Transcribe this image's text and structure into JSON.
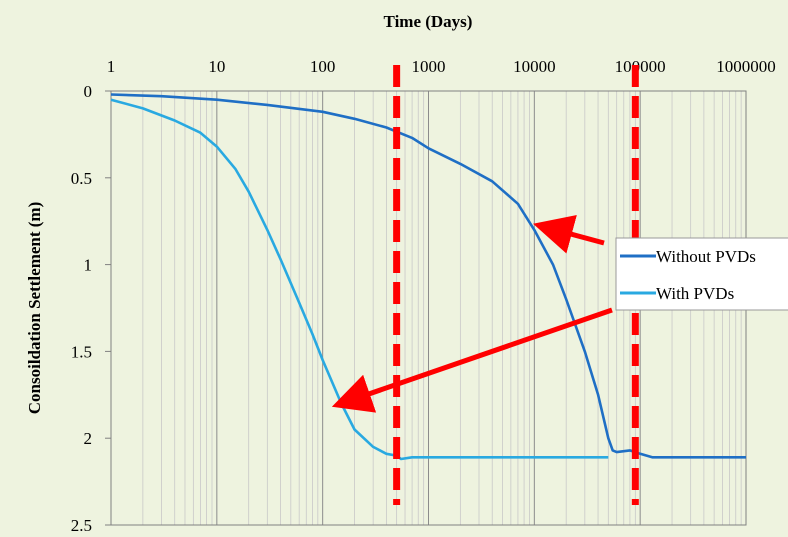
{
  "chart_data": {
    "type": "line",
    "title": "Time (Days)",
    "xlabel": "Time (Days)",
    "ylabel": "Consoildation Settlement (m)",
    "xscale": "log",
    "xlim": [
      1,
      1000000
    ],
    "ylim": [
      2.5,
      0
    ],
    "y_inverted": true,
    "x_axis_position": "top",
    "x_ticks": [
      "1",
      "10",
      "100",
      "1000",
      "10000",
      "100000",
      "1000000"
    ],
    "y_ticks": [
      "0",
      "0.5",
      "1",
      "1.5",
      "2",
      "2.5"
    ],
    "grid": {
      "vertical_minor": true,
      "horizontal": false
    },
    "legend": {
      "placement": "right",
      "entries": [
        "Without PVDs",
        "With PVDs"
      ]
    },
    "series": [
      {
        "name": "Without PVDs",
        "color": "#1f6fc5",
        "points": [
          [
            1,
            0.02
          ],
          [
            3,
            0.03
          ],
          [
            10,
            0.05
          ],
          [
            30,
            0.08
          ],
          [
            100,
            0.12
          ],
          [
            200,
            0.16
          ],
          [
            400,
            0.21
          ],
          [
            700,
            0.27
          ],
          [
            1000,
            0.33
          ],
          [
            2000,
            0.42
          ],
          [
            4000,
            0.52
          ],
          [
            7000,
            0.65
          ],
          [
            10000,
            0.8
          ],
          [
            15000,
            1.0
          ],
          [
            20000,
            1.2
          ],
          [
            30000,
            1.5
          ],
          [
            40000,
            1.75
          ],
          [
            50000,
            2.0
          ],
          [
            55000,
            2.07
          ],
          [
            60000,
            2.08
          ],
          [
            80000,
            2.07
          ],
          [
            100000,
            2.09
          ],
          [
            130000,
            2.11
          ],
          [
            1000000,
            2.11
          ]
        ]
      },
      {
        "name": "With PVDs",
        "color": "#29a9e1",
        "points": [
          [
            1,
            0.05
          ],
          [
            2,
            0.1
          ],
          [
            4,
            0.17
          ],
          [
            7,
            0.24
          ],
          [
            10,
            0.32
          ],
          [
            15,
            0.45
          ],
          [
            20,
            0.58
          ],
          [
            30,
            0.8
          ],
          [
            40,
            0.97
          ],
          [
            60,
            1.22
          ],
          [
            80,
            1.4
          ],
          [
            100,
            1.55
          ],
          [
            150,
            1.8
          ],
          [
            200,
            1.95
          ],
          [
            300,
            2.05
          ],
          [
            400,
            2.09
          ],
          [
            500,
            2.1
          ],
          [
            550,
            2.12
          ],
          [
            700,
            2.11
          ],
          [
            1000,
            2.11
          ],
          [
            50000,
            2.11
          ]
        ]
      }
    ],
    "annotations": [
      {
        "type": "dashed-vertical-line",
        "x": 500,
        "color": "#ff0000"
      },
      {
        "type": "dashed-vertical-line",
        "x": 90000,
        "color": "#ff0000"
      },
      {
        "type": "arrow",
        "from_legend": "Without PVDs",
        "to": [
          12000,
          0.78
        ],
        "color": "#ff0000"
      },
      {
        "type": "arrow",
        "from_legend": "With PVDs",
        "to": [
          150,
          1.8
        ],
        "color": "#ff0000"
      }
    ]
  }
}
